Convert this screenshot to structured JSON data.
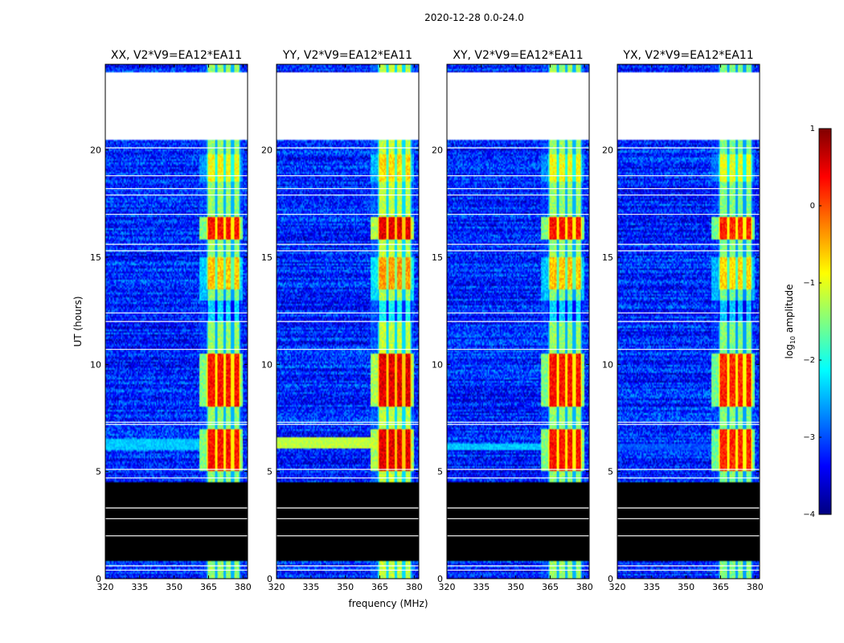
{
  "chart_data": {
    "type": "heatmap",
    "suptitle": "2020-12-28 0.0-24.0",
    "xlabel": "frequency (MHz)",
    "ylabel": "UT (hours)",
    "xlim": [
      320,
      382
    ],
    "ylim": [
      0,
      24
    ],
    "xticks": [
      320,
      335,
      350,
      365,
      380
    ],
    "yticks": [
      0,
      5,
      10,
      15,
      20
    ],
    "colorbar": {
      "label_prefix": "log",
      "label_sub": "10",
      "label_suffix": " amplitude",
      "range": [
        -4,
        1
      ],
      "ticks": [
        1,
        0,
        -1,
        -2,
        -3,
        -4
      ],
      "tick_labels": [
        "1",
        "0",
        "−1",
        "−2",
        "−3",
        "−4"
      ],
      "colormap": "jet"
    },
    "rfi_band_mhz": [
      364,
      379
    ],
    "rfi_subband_edges_mhz": [
      364,
      368.5,
      372,
      375.5,
      379
    ],
    "data_gaps_ut": [
      [
        20.5,
        23.6
      ]
    ],
    "black_ut": [
      [
        0.8,
        4.5
      ]
    ],
    "strong_rfi_ut": [
      [
        5.0,
        7.0
      ],
      [
        8.0,
        10.5
      ],
      [
        15.8,
        16.9
      ]
    ],
    "panels": [
      {
        "title": "XX, V2*V9=EA12*EA11",
        "level_offset": 0.0,
        "extra_band_ut": [
          6.0,
          6.5
        ]
      },
      {
        "title": "YY, V2*V9=EA12*EA11",
        "level_offset": 0.2,
        "extra_band_ut": [
          6.1,
          6.6
        ]
      },
      {
        "title": "XY, V2*V9=EA12*EA11",
        "level_offset": 0.0,
        "extra_band_ut": [
          6.0,
          6.3
        ]
      },
      {
        "title": "YX, V2*V9=EA12*EA11",
        "level_offset": -0.1,
        "extra_band_ut": [
          6.0,
          6.3
        ]
      }
    ]
  }
}
